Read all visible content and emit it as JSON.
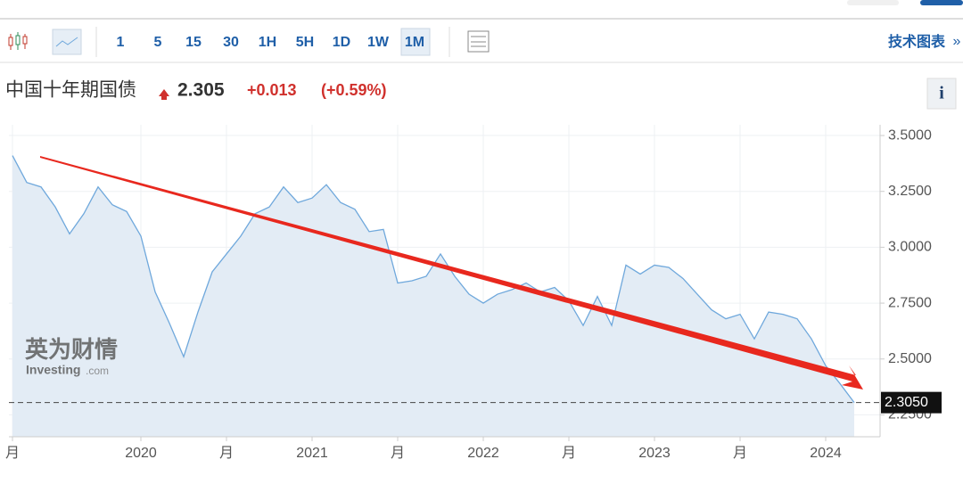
{
  "toolbar": {
    "intervals": [
      "1",
      "5",
      "15",
      "30",
      "1H",
      "5H",
      "1D",
      "1W",
      "1M"
    ],
    "active": "1M",
    "link": "技术图表",
    "more": "»"
  },
  "header": {
    "name": "中国十年期国债",
    "price": "2.305",
    "change": "+0.013",
    "change_pct": "(+0.59%)",
    "info": "i"
  },
  "watermark": {
    "brand": "英为财情",
    "site": "Investing",
    "domain": ".com"
  },
  "chart_data": {
    "type": "line",
    "categories": [
      "月",
      null,
      null,
      null,
      null,
      null,
      null,
      null,
      null,
      "2020",
      null,
      null,
      null,
      null,
      null,
      "月",
      null,
      null,
      null,
      null,
      null,
      "2021",
      null,
      null,
      null,
      null,
      null,
      "月",
      null,
      null,
      null,
      null,
      null,
      "2022",
      null,
      null,
      null,
      null,
      null,
      "月",
      null,
      null,
      null,
      null,
      null,
      "2023",
      null,
      null,
      null,
      null,
      null,
      "月",
      null,
      null,
      null,
      null,
      null,
      "2024",
      null,
      null
    ],
    "series": [
      {
        "name": "中国十年期国债",
        "color": "#6fa8dc",
        "values": [
          3.41,
          3.29,
          3.27,
          3.18,
          3.06,
          3.15,
          3.27,
          3.19,
          3.16,
          3.05,
          2.8,
          2.66,
          2.51,
          2.71,
          2.89,
          2.97,
          3.05,
          3.15,
          3.18,
          3.27,
          3.2,
          3.22,
          3.28,
          3.2,
          3.17,
          3.07,
          3.08,
          2.84,
          2.85,
          2.87,
          2.97,
          2.87,
          2.79,
          2.75,
          2.79,
          2.81,
          2.84,
          2.8,
          2.82,
          2.76,
          2.65,
          2.78,
          2.65,
          2.92,
          2.88,
          2.92,
          2.91,
          2.86,
          2.79,
          2.72,
          2.68,
          2.7,
          2.59,
          2.71,
          2.7,
          2.68,
          2.59,
          2.47,
          2.39,
          2.305
        ]
      }
    ],
    "ylim": [
      2.152,
      3.548
    ],
    "yticks": [
      {
        "value": 2.25,
        "label": "2.2500"
      },
      {
        "value": 2.5,
        "label": "2.5000"
      },
      {
        "value": 2.75,
        "label": "2.7500"
      },
      {
        "value": 3.0,
        "label": "3.0000"
      },
      {
        "value": 3.25,
        "label": "3.2500"
      },
      {
        "value": 3.5,
        "label": "3.5000"
      }
    ],
    "last_price": {
      "value": 2.305,
      "label": "2.3050"
    },
    "grid": true
  }
}
